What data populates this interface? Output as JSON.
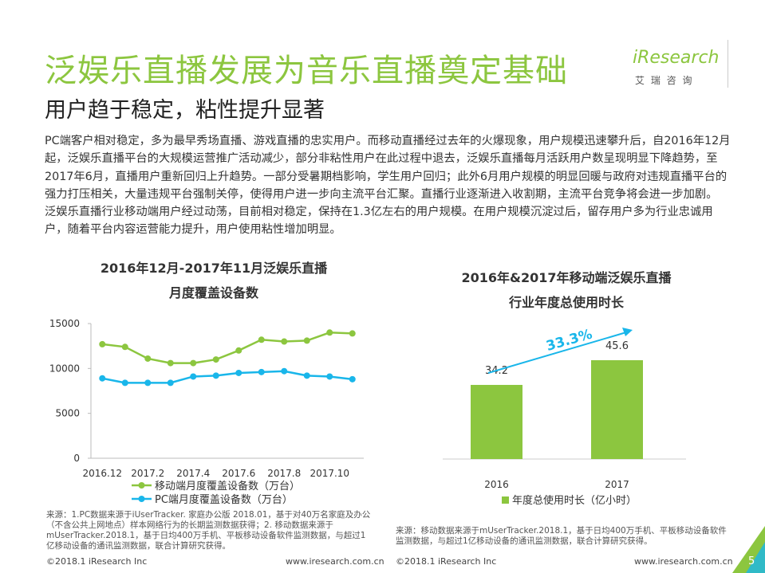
{
  "header": {
    "title": "泛娱乐直播发展为音乐直播奠定基础",
    "subtitle": "用户趋于稳定，粘性提升显著",
    "logo": "iResearch",
    "logo_cn": "艾 瑞 咨 询"
  },
  "body": [
    "PC端客户相对稳定，多为最早秀场直播、游戏直播的忠实用户。而移动直播经过去年的火爆现象，用户规模迅速攀升后，自2016年12月起，泛娱乐直播平台的大规模运营推广活动减少，部分非粘性用户在此过程中退去，泛娱乐直播每月活跃用户数呈现明显下降趋势，至2017年6月，直播用户重新回归上升趋势。一部分受暑期档影响，学生用户回归；此外6月用户规模的明显回暖与政府对违规直播平台的强力打压相关，大量违规平台强制关停，使得用户进一步向主流平台汇聚。直播行业逐渐进入收割期，主流平台竞争将会进一步加剧。",
    "泛娱乐直播行业移动端用户经过动荡，目前相对稳定，保持在1.3亿左右的用户规模。在用户规模沉淀过后，留存用户多为行业忠诚用户，随着平台内容运营能力提升，用户使用粘性增加明显。"
  ],
  "chart_data": [
    {
      "type": "line",
      "title": "2016年12月-2017年11月泛娱乐直播",
      "subtitle": "月度覆盖设备数",
      "categories": [
        "2016.12",
        null,
        "2017.2",
        null,
        "2017.4",
        null,
        "2017.6",
        null,
        "2017.8",
        null,
        "2017.10",
        null
      ],
      "series": [
        {
          "name": "移动端月度覆盖设备数（万台）",
          "color": "#8cc63f",
          "values": [
            12700,
            12400,
            11100,
            10600,
            10600,
            11000,
            12000,
            13200,
            13000,
            13100,
            14000,
            13900
          ]
        },
        {
          "name": "PC端月度覆盖设备数（万台）",
          "color": "#19b6ea",
          "values": [
            8900,
            8400,
            8400,
            8400,
            9100,
            9200,
            9500,
            9600,
            9700,
            9200,
            9100,
            8800
          ]
        }
      ],
      "ylim": [
        0,
        15000
      ],
      "yticks": [
        0,
        5000,
        10000,
        15000
      ],
      "grid": false,
      "legend": "bottom",
      "source": "来源：1.PC数据来源于iUserTracker. 家庭办公版 2018.01，基于对40万名家庭及办公（不含公共上网地点）样本网络行为的长期监测数据获得；2. 移动数据来源于mUserTracker.2018.1，基于日均400万手机、平板移动设备软件监测数据，与超过1亿移动设备的通讯监测数据，联合计算研究获得。"
    },
    {
      "type": "bar",
      "title": "2016年&2017年移动端泛娱乐直播",
      "subtitle": "行业年度总使用时长",
      "categories": [
        "2016",
        "2017"
      ],
      "series": [
        {
          "name": "年度总使用时长（亿小时）",
          "color": "#8cc63f",
          "values": [
            34.2,
            45.6
          ]
        }
      ],
      "annotation": "33.3%",
      "annotation_color": "#19b6ea",
      "legend": "bottom",
      "source": "来源：移动数据来源于mUserTracker.2018.1，基于日均400万手机、平板移动设备软件监测数据，与超过1亿移动设备的通讯监测数据，联合计算研究获得。"
    }
  ],
  "footer": {
    "left_copyright": "©2018.1 iResearch Inc",
    "left_url": "www.iresearch.com.cn",
    "right_copyright": "©2018.1 iResearch Inc",
    "right_url": "www.iresearch.com.cn",
    "page": "5"
  }
}
